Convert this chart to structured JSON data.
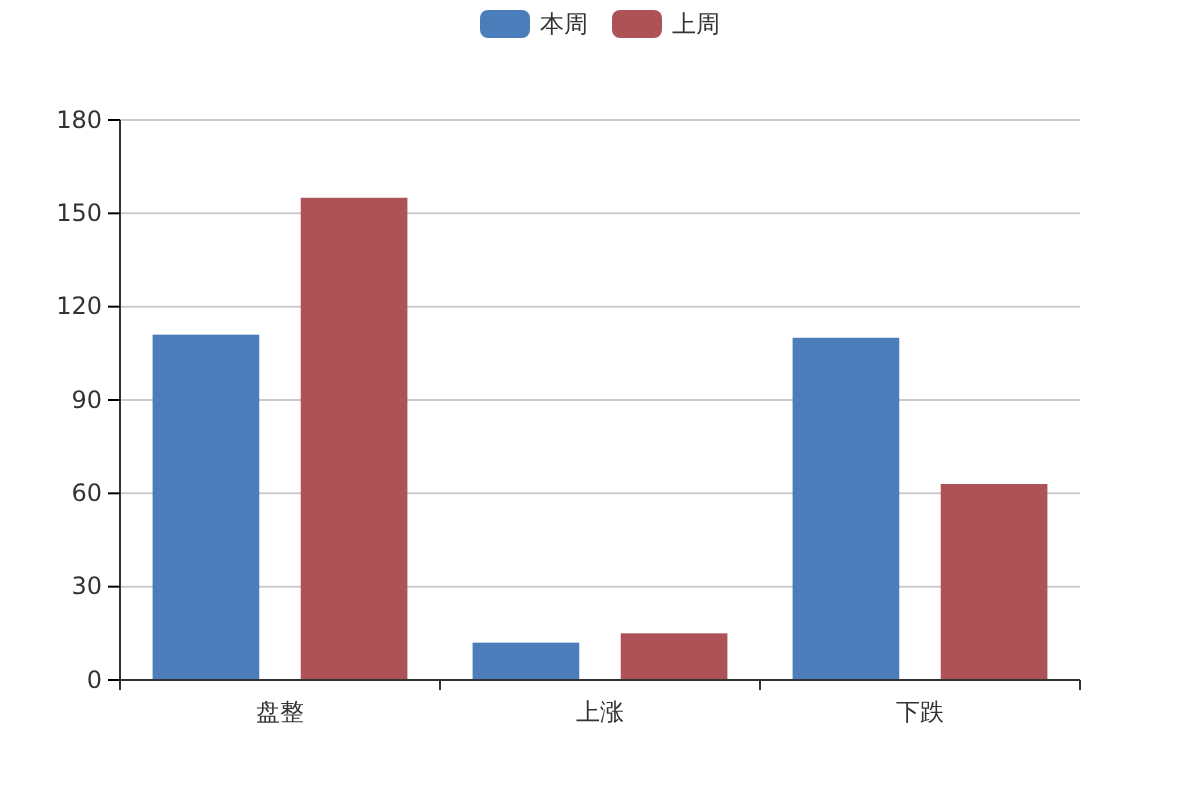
{
  "chart_data": {
    "type": "bar",
    "categories": [
      "盘整",
      "上涨",
      "下跌"
    ],
    "series": [
      {
        "name": "本周",
        "color": "#4b7dbb",
        "values": [
          111,
          12,
          110
        ]
      },
      {
        "name": "上周",
        "color": "#ad5257",
        "values": [
          155,
          15,
          63
        ]
      }
    ],
    "ylim": [
      0,
      180
    ],
    "yticks": [
      0,
      30,
      60,
      90,
      120,
      150,
      180
    ],
    "grid": "y",
    "legend": "top"
  }
}
